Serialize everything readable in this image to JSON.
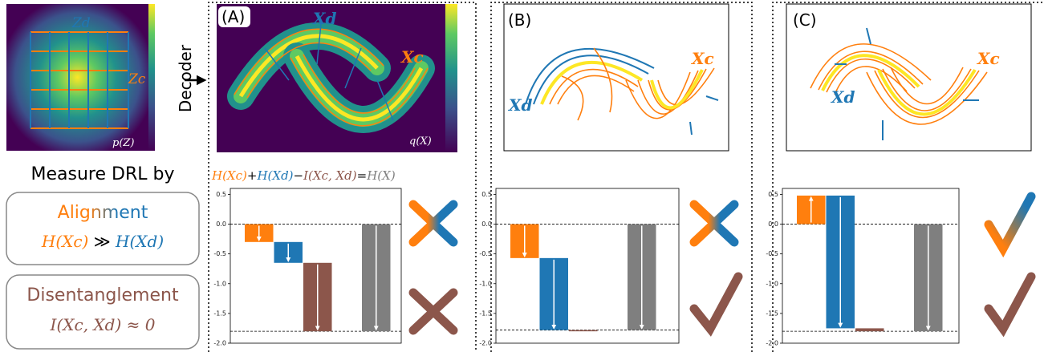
{
  "latent": {
    "zd": "Zd",
    "zc": "Zc",
    "pz": "p(Z)"
  },
  "decoder": "Decoder",
  "measure": {
    "title": "Measure DRL by",
    "alignment": "Alignment",
    "alignment_formula": [
      "H(Xc)",
      "≫",
      "H(Xd)"
    ],
    "disentanglement": "Disentanglement",
    "disentanglement_formula": "I(Xc, Xd) ≈ 0"
  },
  "equation": [
    "H(Xc)",
    "+",
    "H(Xd)",
    "−",
    "I(Xc, Xd)",
    "=",
    "H(X)"
  ],
  "panels": [
    {
      "label": "(A)",
      "xd": "Xd",
      "xc": "Xc",
      "qx": "q(X)"
    },
    {
      "label": "(B)",
      "xd": "Xd",
      "xc": "Xc"
    },
    {
      "label": "(C)",
      "xd": "Xd",
      "xc": "Xc"
    }
  ],
  "chart_data": [
    {
      "type": "waterfall",
      "values": [
        -0.3,
        -0.35,
        -1.15,
        -1.8
      ],
      "colors": [
        "#ff7f0e",
        "#1f77b4",
        "#8c564b",
        "#7f7f7f"
      ],
      "ylim": [
        -2.0,
        0.6
      ],
      "yticks": [
        0.5,
        {
          "value": 0,
          "label": "0.0"
        },
        -0.5,
        {
          "value": -1,
          "label": "-1.0"
        },
        -1.5,
        {
          "value": -2,
          "label": "-2.0"
        }
      ]
    },
    {
      "type": "waterfall",
      "values": [
        -0.57,
        -1.21,
        0,
        -1.78
      ],
      "colors": [
        "#ff7f0e",
        "#1f77b4",
        "#8c564b",
        "#7f7f7f"
      ],
      "ylim": [
        -2.0,
        0.6
      ],
      "yticks": [
        0.5,
        {
          "value": 0,
          "label": "0.0"
        },
        -0.5,
        {
          "value": -1,
          "label": "-1.0"
        },
        -1.5,
        {
          "value": -2,
          "label": "-2.0"
        }
      ]
    },
    {
      "type": "waterfall",
      "values": [
        0.48,
        -2.23,
        -0.05,
        -1.8
      ],
      "colors": [
        "#ff7f0e",
        "#1f77b4",
        "#8c564b",
        "#7f7f7f"
      ],
      "ylim": [
        -2.0,
        0.6
      ],
      "yticks": [
        0.5,
        {
          "value": 0,
          "label": "0.0"
        },
        -0.5,
        {
          "value": -1,
          "label": "-1.0"
        },
        -1.5,
        {
          "value": -2,
          "label": "-2.0"
        }
      ]
    }
  ]
}
